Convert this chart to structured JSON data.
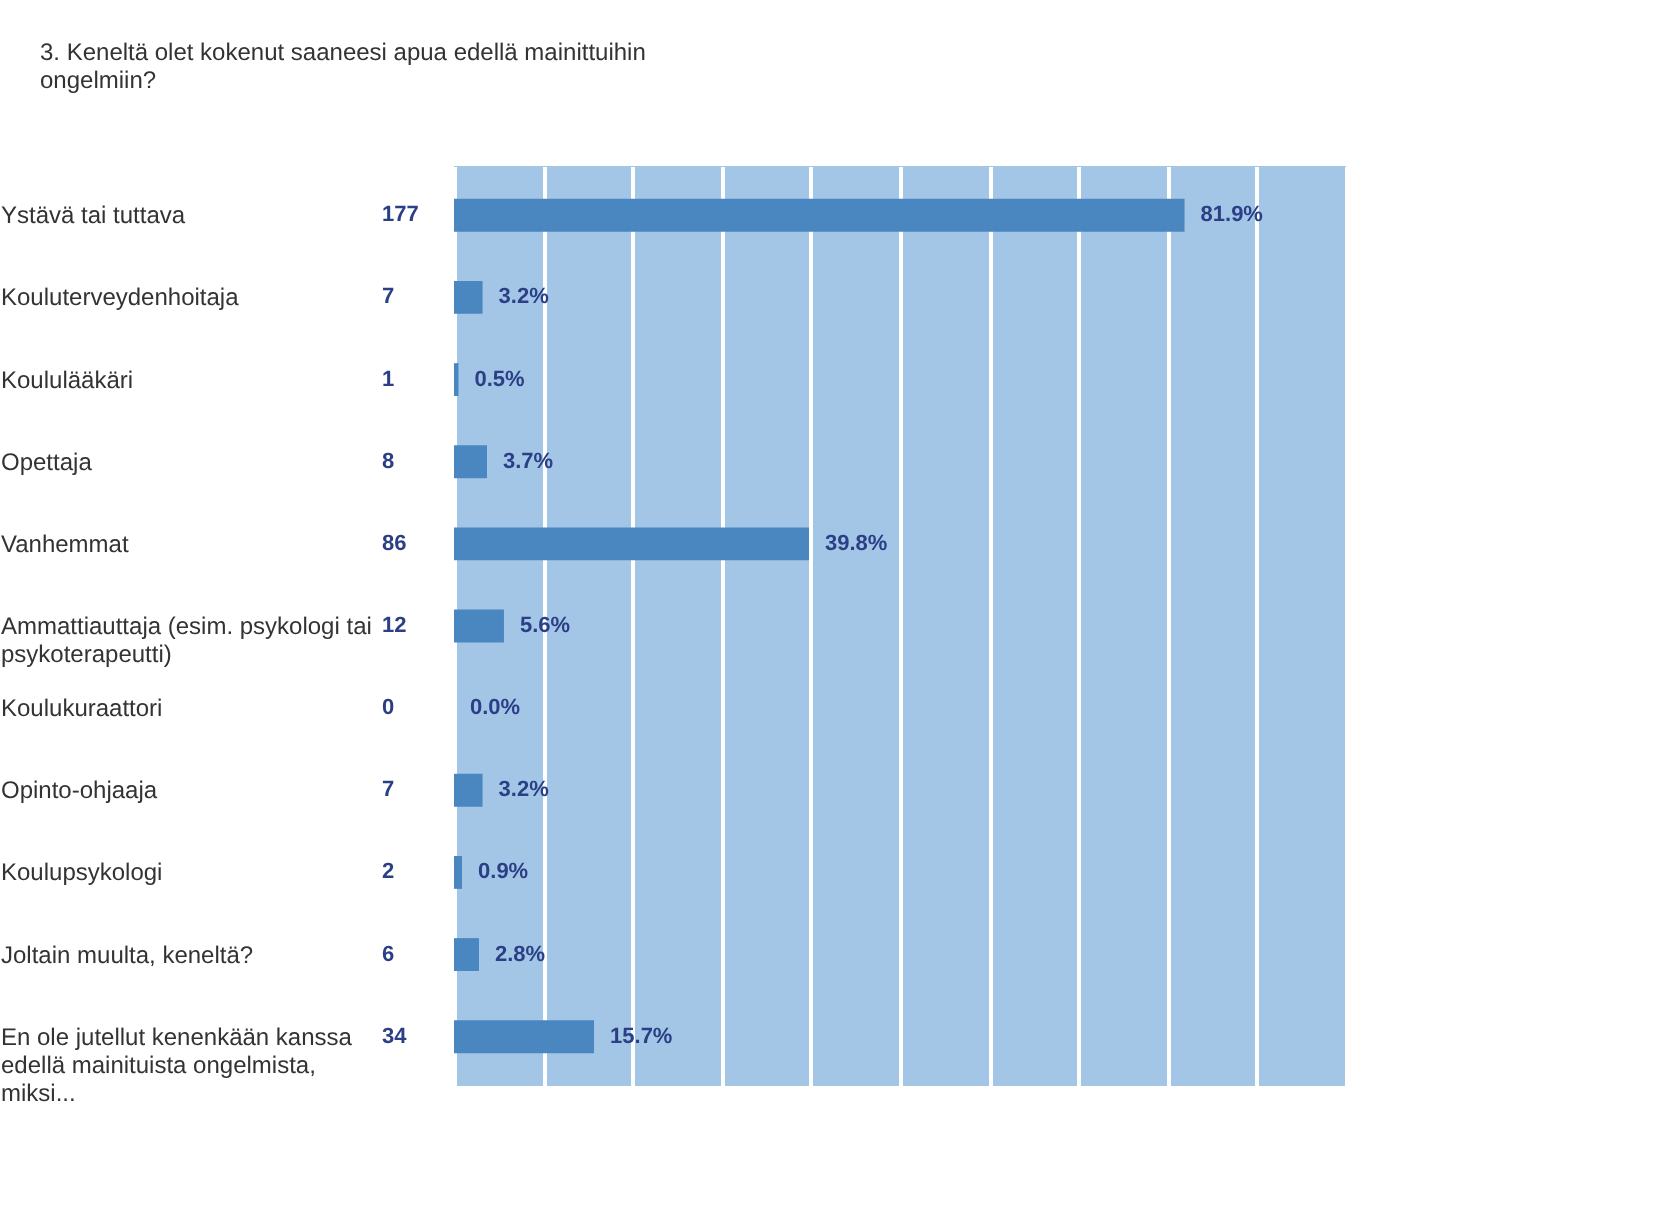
{
  "chart_data": {
    "type": "bar",
    "orientation": "horizontal",
    "title": "3. Keneltä olet kokenut saaneesi apua edellä mainittuihin ongelmiin?",
    "categories": [
      "Ystävä tai tuttava",
      "Kouluterveydenhoitaja",
      "Koululääkäri",
      "Opettaja",
      "Vanhemmat",
      "Ammattiauttaja (esim. psykologi tai psykoterapeutti)",
      "Koulukuraattori",
      "Opinto-ohjaaja",
      "Koulupsykologi",
      "Joltain muulta, keneltä?",
      "En ole jutellut kenenkään kanssa edellä mainituista ongelmista, miksi..."
    ],
    "values": [
      81.9,
      3.2,
      0.5,
      3.7,
      39.8,
      5.6,
      0.0,
      3.2,
      0.9,
      2.8,
      15.7
    ],
    "value_labels": [
      "81.9%",
      "3.2%",
      "0.5%",
      "3.7%",
      "39.8%",
      "5.6%",
      "0.0%",
      "3.2%",
      "0.9%",
      "2.8%",
      "15.7%"
    ],
    "color": "#4a86bf",
    "xlim": [
      0,
      100
    ],
    "xticks": [
      {
        "value": 0,
        "label": null
      },
      {
        "value": 10,
        "label": null
      },
      {
        "value": 20,
        "label": null
      },
      {
        "value": 30,
        "label": null
      },
      {
        "value": 40,
        "label": null
      },
      {
        "value": 50,
        "label": null
      },
      {
        "value": 60,
        "label": null
      },
      {
        "value": 70,
        "label": null
      },
      {
        "value": 80,
        "label": null
      },
      {
        "value": 90,
        "label": null
      },
      {
        "value": 100,
        "label": null
      }
    ],
    "grid": "x",
    "tick_labels": "y",
    "annotations": [
      "177",
      "7",
      "1",
      "8",
      "86",
      "12",
      "0",
      "7",
      "2",
      "6",
      "34"
    ]
  }
}
